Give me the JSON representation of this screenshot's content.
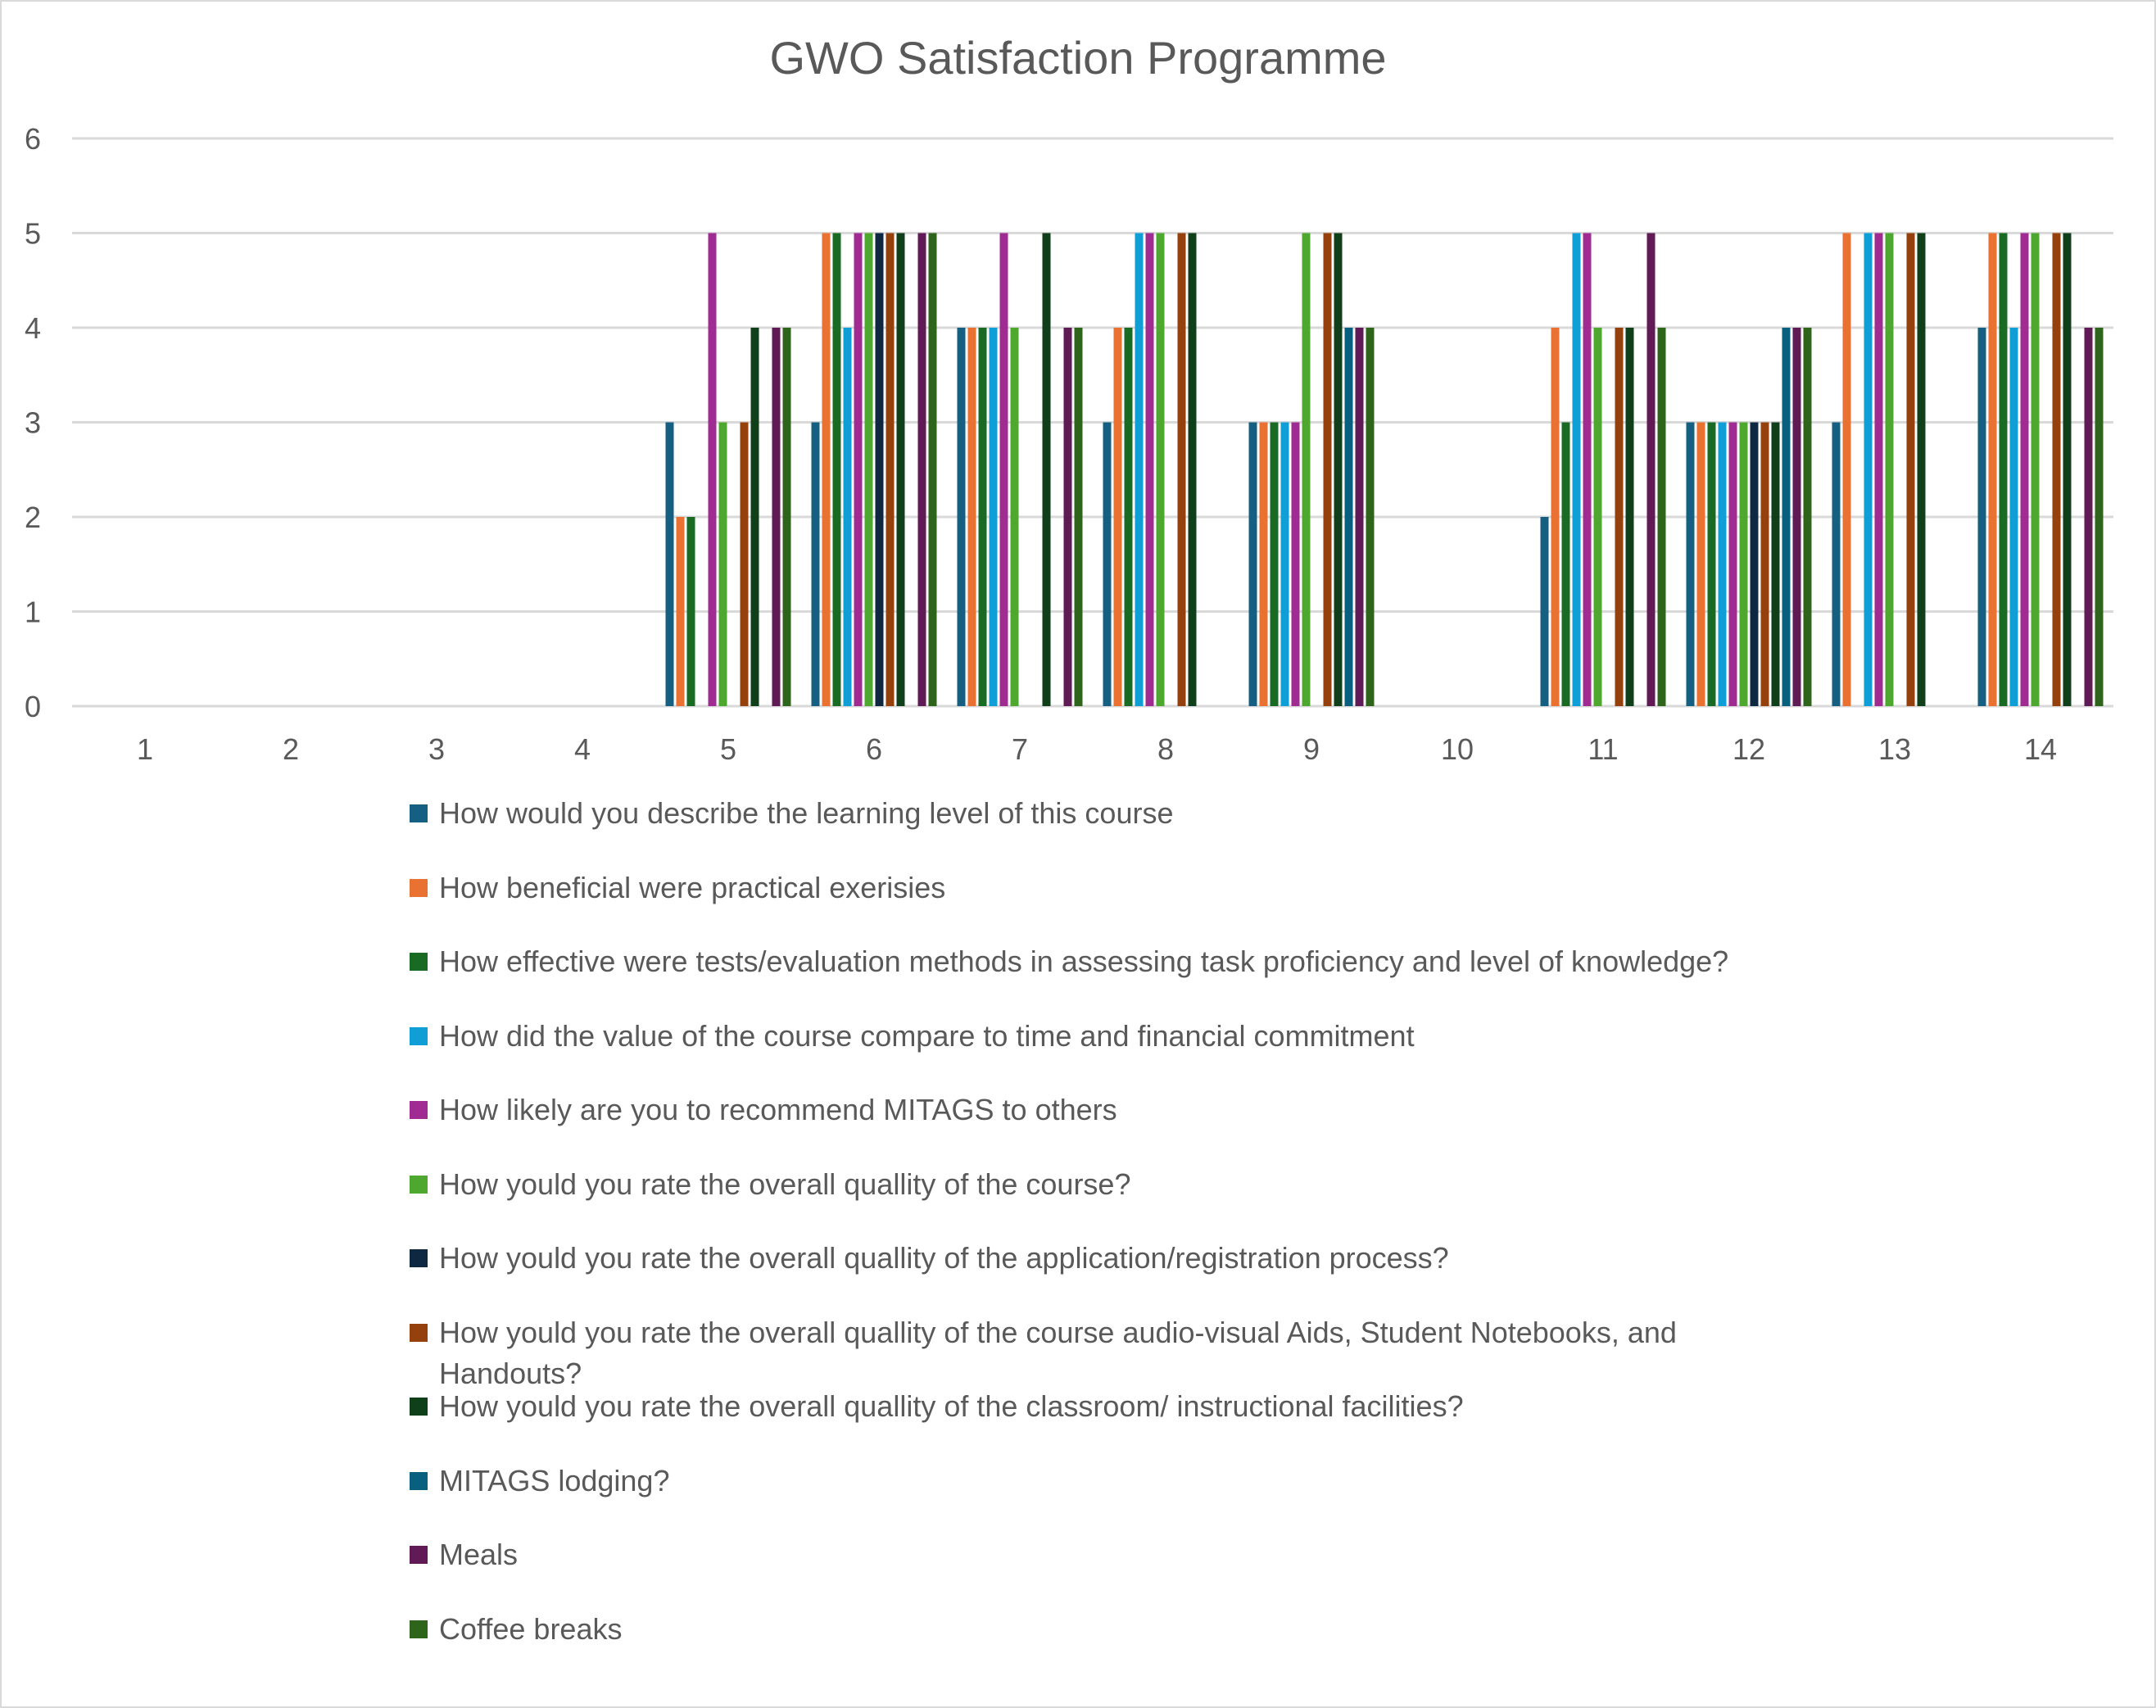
{
  "chart_data": {
    "type": "bar",
    "title": "GWO Satisfaction Programme",
    "xlabel": "",
    "ylabel": "",
    "ylim": [
      0,
      6
    ],
    "yticks": [
      "0",
      "1",
      "2",
      "3",
      "4",
      "5",
      "6"
    ],
    "grid": true,
    "legend_position": "bottom",
    "categories": [
      "1",
      "2",
      "3",
      "4",
      "5",
      "6",
      "7",
      "8",
      "9",
      "10",
      "11",
      "12",
      "13",
      "14"
    ],
    "series": [
      {
        "name": "How would you describe the learning level of this course",
        "color": "#156082",
        "values": [
          null,
          null,
          null,
          null,
          3,
          3,
          4,
          3,
          3,
          null,
          2,
          3,
          3,
          4
        ]
      },
      {
        "name": "How beneficial were practical exerisies",
        "color": "#E97132",
        "values": [
          null,
          null,
          null,
          null,
          2,
          5,
          4,
          4,
          3,
          null,
          4,
          3,
          5,
          5
        ]
      },
      {
        "name": "How effective were tests/evaluation methods in assessing task proficiency and level of knowledge?",
        "color": "#196B24",
        "values": [
          null,
          null,
          null,
          null,
          2,
          5,
          4,
          4,
          3,
          null,
          3,
          3,
          null,
          5
        ]
      },
      {
        "name": "How did the value of the course compare to time and financial commitment",
        "color": "#0F9ED5",
        "values": [
          null,
          null,
          null,
          null,
          null,
          4,
          4,
          5,
          3,
          null,
          5,
          3,
          5,
          4
        ]
      },
      {
        "name": "How likely are you to recommend MITAGS to others",
        "color": "#A02B93",
        "values": [
          null,
          null,
          null,
          null,
          5,
          5,
          5,
          5,
          3,
          null,
          5,
          3,
          5,
          5
        ]
      },
      {
        "name": "How yould you rate the overall quallity of the course?",
        "color": "#4EA72E",
        "values": [
          null,
          null,
          null,
          null,
          3,
          5,
          4,
          5,
          5,
          null,
          4,
          3,
          5,
          5
        ]
      },
      {
        "name": "How yould you rate the overall quallity of the  application/registration process?",
        "color": "#0E2841",
        "values": [
          null,
          null,
          null,
          null,
          null,
          5,
          null,
          null,
          null,
          null,
          null,
          3,
          null,
          null
        ]
      },
      {
        "name": "How yould you rate the overall quallity of the course audio-visual Aids, Student Notebooks, and Handouts?",
        "color": "#95410E",
        "values": [
          null,
          null,
          null,
          null,
          3,
          5,
          null,
          5,
          5,
          null,
          4,
          3,
          5,
          5
        ]
      },
      {
        "name": "How yould you rate the overall quallity of the classroom/ instructional facilities?",
        "color": "#10401A",
        "values": [
          null,
          null,
          null,
          null,
          4,
          5,
          5,
          5,
          5,
          null,
          4,
          3,
          5,
          5
        ]
      },
      {
        "name": "MITAGS lodging?",
        "color": "#08607E",
        "values": [
          null,
          null,
          null,
          null,
          null,
          null,
          null,
          null,
          4,
          null,
          null,
          4,
          null,
          null
        ]
      },
      {
        "name": "Meals",
        "color": "#601A55",
        "values": [
          null,
          null,
          null,
          null,
          4,
          5,
          4,
          null,
          4,
          null,
          5,
          4,
          null,
          4
        ]
      },
      {
        "name": "Coffee breaks",
        "color": "#2F641D",
        "values": [
          null,
          null,
          null,
          null,
          4,
          5,
          4,
          null,
          4,
          null,
          4,
          4,
          null,
          4
        ]
      }
    ]
  }
}
